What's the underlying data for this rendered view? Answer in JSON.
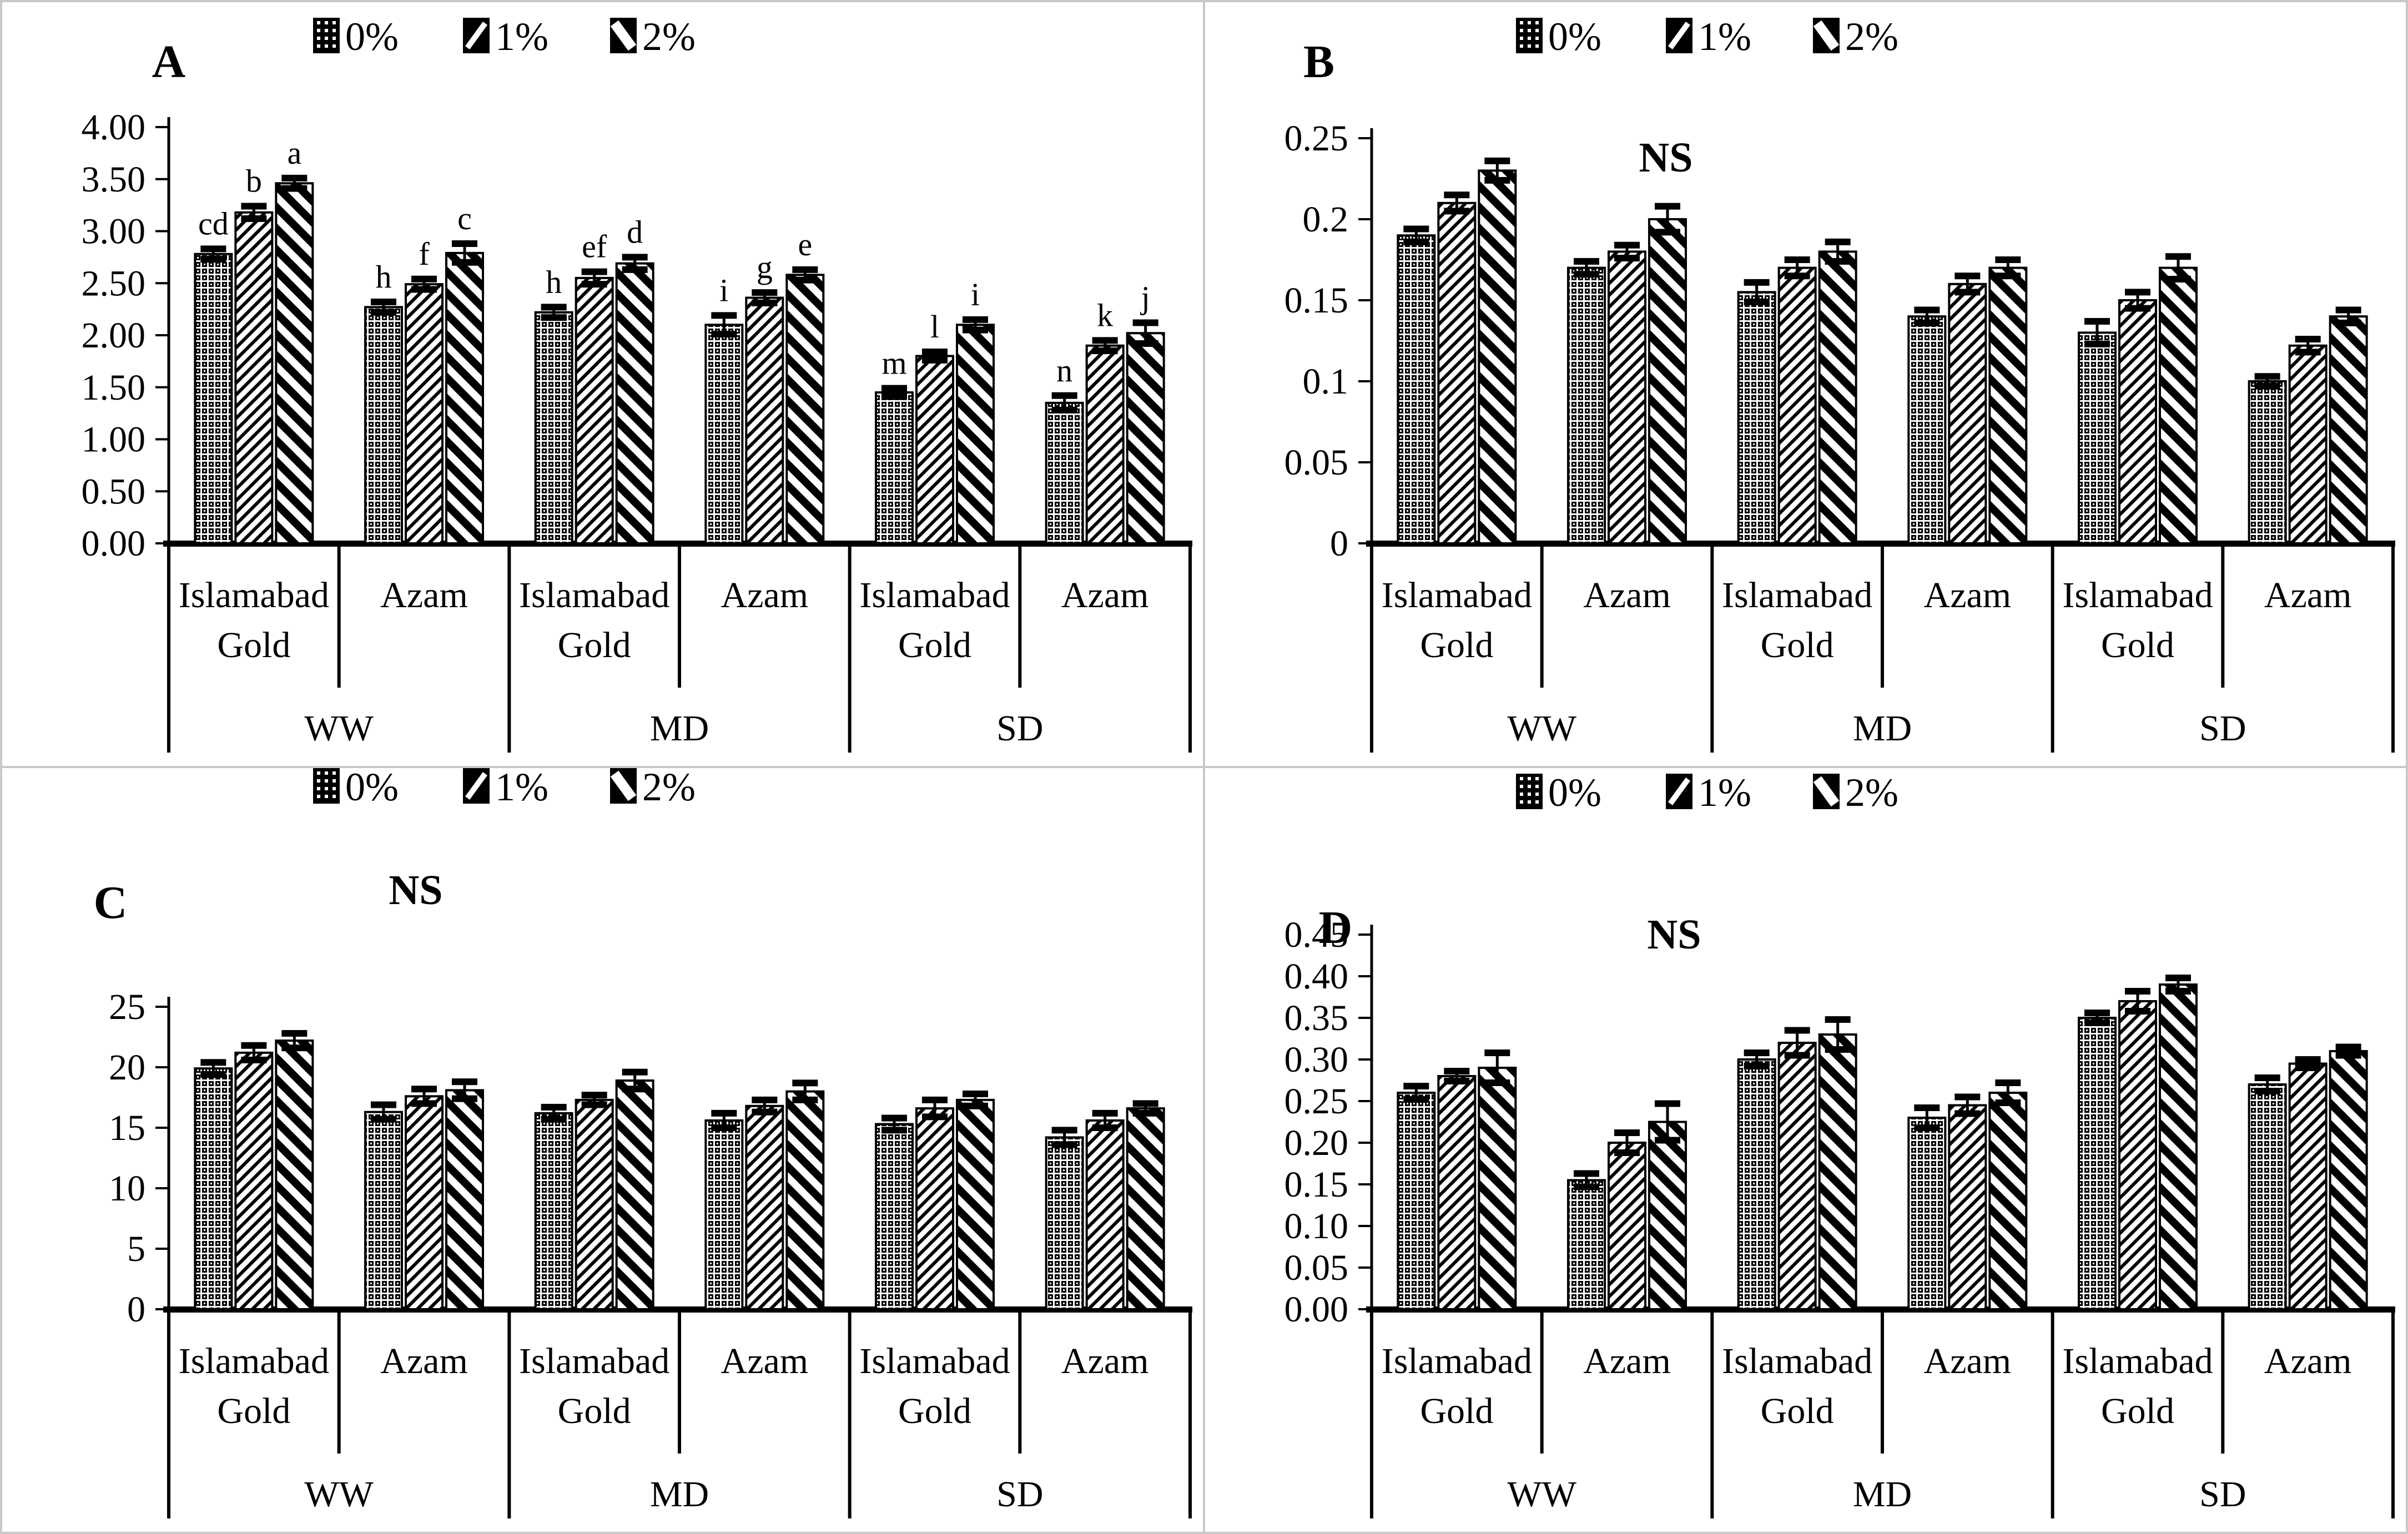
{
  "figure": {
    "background": "#ffffff",
    "divider_color": "#c9c9c9",
    "ink_color": "#000000"
  },
  "legend": {
    "items": [
      {
        "label": "0%",
        "pattern": "dots",
        "icon": "dotted-swatch-icon"
      },
      {
        "label": "1%",
        "pattern": "thin-diagonal-up",
        "icon": "thin-hatch-swatch-icon"
      },
      {
        "label": "2%",
        "pattern": "thick-diagonal-down",
        "icon": "thick-hatch-swatch-icon"
      }
    ]
  },
  "x_axis": {
    "cultivars": [
      "Islamabad Gold",
      "Azam"
    ],
    "treatments": [
      "WW",
      "MD",
      "SD"
    ],
    "group_order": [
      {
        "treatment": "WW",
        "cultivar": "Islamabad Gold"
      },
      {
        "treatment": "WW",
        "cultivar": "Azam"
      },
      {
        "treatment": "MD",
        "cultivar": "Islamabad Gold"
      },
      {
        "treatment": "MD",
        "cultivar": "Azam"
      },
      {
        "treatment": "SD",
        "cultivar": "Islamabad Gold"
      },
      {
        "treatment": "SD",
        "cultivar": "Azam"
      }
    ]
  },
  "chart_data": [
    {
      "type": "bar",
      "panel": "A",
      "ns_label": "",
      "ns": false,
      "ylim": [
        0,
        4.0
      ],
      "ystep": 0.5,
      "ytick_labels": [
        "0.00",
        "0.50",
        "1.00",
        "1.50",
        "2.00",
        "2.50",
        "3.00",
        "3.50",
        "4.00"
      ],
      "categories": [
        "WW Islamabad Gold",
        "WW Azam",
        "MD Islamabad Gold",
        "MD Azam",
        "SD Islamabad Gold",
        "SD Azam"
      ],
      "series": [
        {
          "name": "0%",
          "values": [
            2.78,
            2.27,
            2.22,
            2.1,
            1.45,
            1.35
          ],
          "errors": [
            0.05,
            0.05,
            0.05,
            0.09,
            0.04,
            0.07
          ],
          "letters": [
            "cd",
            "h",
            "h",
            "i",
            "m",
            "n"
          ]
        },
        {
          "name": "1%",
          "values": [
            3.18,
            2.49,
            2.55,
            2.36,
            1.8,
            1.9
          ],
          "errors": [
            0.06,
            0.05,
            0.06,
            0.05,
            0.04,
            0.05
          ],
          "letters": [
            "b",
            "f",
            "ef",
            "g",
            "l",
            "k"
          ]
        },
        {
          "name": "2%",
          "values": [
            3.46,
            2.79,
            2.69,
            2.58,
            2.1,
            2.02
          ],
          "errors": [
            0.05,
            0.09,
            0.06,
            0.05,
            0.05,
            0.1
          ],
          "letters": [
            "a",
            "c",
            "d",
            "e",
            "i",
            "j"
          ]
        }
      ]
    },
    {
      "type": "bar",
      "panel": "B",
      "ns_label": "NS",
      "ns": true,
      "ylim": [
        0,
        0.25
      ],
      "ystep": 0.05,
      "ytick_labels": [
        "0",
        "0.05",
        "0.1",
        "0.15",
        "0.2",
        "0.25"
      ],
      "categories": [
        "WW Islamabad Gold",
        "WW Azam",
        "MD Islamabad Gold",
        "MD Azam",
        "SD Islamabad Gold",
        "SD Azam"
      ],
      "series": [
        {
          "name": "0%",
          "values": [
            0.19,
            0.17,
            0.155,
            0.14,
            0.13,
            0.1
          ],
          "errors": [
            0.004,
            0.004,
            0.006,
            0.004,
            0.007,
            0.003
          ],
          "letters": null
        },
        {
          "name": "1%",
          "values": [
            0.21,
            0.18,
            0.17,
            0.16,
            0.15,
            0.122
          ],
          "errors": [
            0.005,
            0.004,
            0.005,
            0.005,
            0.005,
            0.004
          ],
          "letters": null
        },
        {
          "name": "2%",
          "values": [
            0.23,
            0.2,
            0.18,
            0.17,
            0.17,
            0.14
          ],
          "errors": [
            0.006,
            0.008,
            0.006,
            0.005,
            0.007,
            0.004
          ],
          "letters": null
        }
      ]
    },
    {
      "type": "bar",
      "panel": "C",
      "ns_label": "NS",
      "ns": true,
      "ylim": [
        0,
        25
      ],
      "ystep": 5,
      "ytick_labels": [
        "0",
        "5",
        "10",
        "15",
        "20",
        "25"
      ],
      "categories": [
        "WW Islamabad Gold",
        "WW Azam",
        "MD Islamabad Gold",
        "MD Azam",
        "SD Islamabad Gold",
        "SD Azam"
      ],
      "series": [
        {
          "name": "0%",
          "values": [
            19.9,
            16.3,
            16.2,
            15.6,
            15.3,
            14.2
          ],
          "errors": [
            0.5,
            0.6,
            0.5,
            0.6,
            0.5,
            0.6
          ],
          "letters": null
        },
        {
          "name": "1%",
          "values": [
            21.2,
            17.6,
            17.3,
            16.8,
            16.6,
            15.6
          ],
          "errors": [
            0.6,
            0.6,
            0.4,
            0.5,
            0.7,
            0.6
          ],
          "letters": null
        },
        {
          "name": "2%",
          "values": [
            22.2,
            18.1,
            18.9,
            18.0,
            17.3,
            16.6
          ],
          "errors": [
            0.6,
            0.7,
            0.7,
            0.7,
            0.5,
            0.4
          ],
          "letters": null
        }
      ]
    },
    {
      "type": "bar",
      "panel": "D",
      "ns_label": "NS",
      "ns": true,
      "ylim": [
        0,
        0.45
      ],
      "ystep": 0.05,
      "ytick_labels": [
        "0.00",
        "0.05",
        "0.10",
        "0.15",
        "0.20",
        "0.25",
        "0.30",
        "0.35",
        "0.40",
        "0.45"
      ],
      "categories": [
        "WW Islamabad Gold",
        "WW Azam",
        "MD Islamabad Gold",
        "MD Azam",
        "SD Islamabad Gold",
        "SD Azam"
      ],
      "series": [
        {
          "name": "0%",
          "values": [
            0.26,
            0.155,
            0.3,
            0.23,
            0.35,
            0.27
          ],
          "errors": [
            0.008,
            0.008,
            0.008,
            0.012,
            0.006,
            0.008
          ],
          "letters": null
        },
        {
          "name": "1%",
          "values": [
            0.28,
            0.2,
            0.32,
            0.245,
            0.37,
            0.295
          ],
          "errors": [
            0.006,
            0.012,
            0.015,
            0.01,
            0.012,
            0.005
          ],
          "letters": null
        },
        {
          "name": "2%",
          "values": [
            0.29,
            0.225,
            0.33,
            0.26,
            0.39,
            0.31
          ],
          "errors": [
            0.018,
            0.022,
            0.018,
            0.012,
            0.008,
            0.005
          ],
          "letters": null
        }
      ]
    }
  ]
}
